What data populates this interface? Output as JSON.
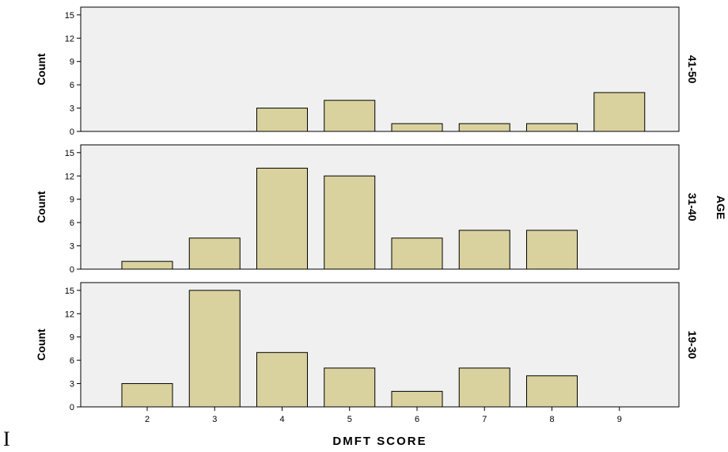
{
  "chart_data": {
    "type": "bar",
    "xlabel": "DMFT SCORE",
    "ylabel": "Count",
    "panel_axis_label": "AGE",
    "categories": [
      "2",
      "3",
      "4",
      "5",
      "6",
      "7",
      "8",
      "9"
    ],
    "yticks": [
      "0",
      "3",
      "6",
      "9",
      "12",
      "15"
    ],
    "ylim": [
      0,
      16
    ],
    "bar_color": "#d9d29e",
    "panel_background": "#f0f0f0",
    "grid": false,
    "panels": [
      {
        "name": "41-50",
        "values": [
          0,
          0,
          3,
          4,
          1,
          1,
          1,
          5
        ]
      },
      {
        "name": "31-40",
        "values": [
          1,
          4,
          13,
          12,
          4,
          5,
          5,
          0
        ]
      },
      {
        "name": "19-30",
        "values": [
          3,
          15,
          7,
          5,
          2,
          5,
          4,
          0
        ]
      }
    ]
  },
  "stray_text": "I"
}
